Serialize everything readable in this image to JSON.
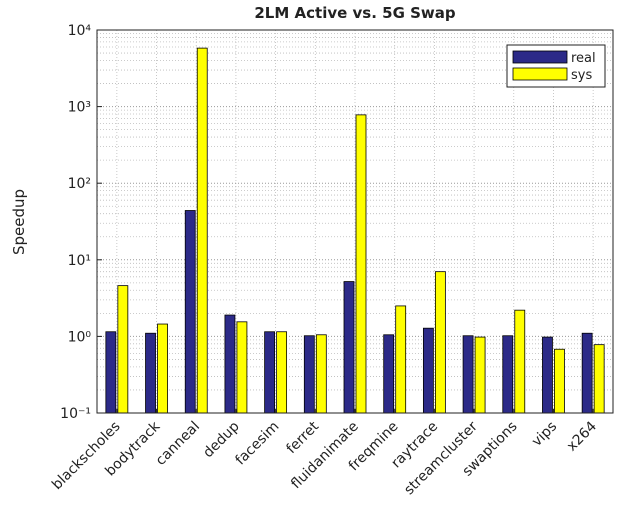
{
  "chart_data": {
    "type": "bar",
    "title": "2LM Active vs. 5G Swap",
    "ylabel": "Speedup",
    "categories": [
      "blackscholes",
      "bodytrack",
      "canneal",
      "dedup",
      "facesim",
      "ferret",
      "fluidanimate",
      "freqmine",
      "raytrace",
      "streamcluster",
      "swaptions",
      "vips",
      "x264"
    ],
    "series": [
      {
        "name": "real",
        "color": "#2c2a88",
        "values": [
          1.15,
          1.1,
          44,
          1.9,
          1.15,
          1.02,
          5.2,
          1.05,
          1.28,
          1.02,
          1.02,
          0.98,
          1.1
        ]
      },
      {
        "name": "sys",
        "color": "#ffff00",
        "values": [
          4.6,
          1.45,
          5800,
          1.55,
          1.15,
          1.05,
          780,
          2.5,
          7.0,
          0.98,
          2.2,
          0.68,
          0.78
        ]
      }
    ],
    "ylim": [
      0.1,
      10000
    ],
    "yscale": "log",
    "yticks": [
      {
        "value": 0.1,
        "label": "10⁻¹"
      },
      {
        "value": 1,
        "label": "10⁰"
      },
      {
        "value": 10,
        "label": "10¹"
      },
      {
        "value": 100,
        "label": "10²"
      },
      {
        "value": 1000,
        "label": "10³"
      },
      {
        "value": 10000,
        "label": "10⁴"
      }
    ],
    "grid": true,
    "legend": "upper right"
  }
}
